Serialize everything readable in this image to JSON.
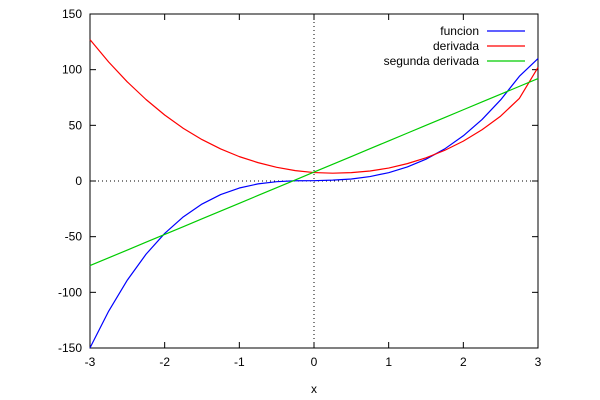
{
  "chart_data": {
    "type": "line",
    "title": "",
    "xlabel": "x",
    "ylabel": "",
    "xlim": [
      -3,
      3
    ],
    "ylim": [
      -150,
      150
    ],
    "x_ticks": [
      -3,
      -2,
      -1,
      0,
      1,
      2,
      3
    ],
    "y_ticks": [
      -150,
      -100,
      -50,
      0,
      50,
      100,
      150
    ],
    "x_tick_labels": [
      "-3",
      "-2",
      "-1",
      "0",
      "1",
      "2",
      "3"
    ],
    "y_tick_labels": [
      "-150",
      "-100",
      "-50",
      "0",
      "50",
      "100",
      "150"
    ],
    "zero_axes": "dotted",
    "grid": false,
    "legend_position": "top-right",
    "x": [
      -3.0,
      -2.75,
      -2.5,
      -2.25,
      -2.0,
      -1.75,
      -1.5,
      -1.25,
      -1.0,
      -0.75,
      -0.5,
      -0.25,
      0.0,
      0.25,
      0.5,
      0.75,
      1.0,
      1.25,
      1.5,
      1.75,
      2.0,
      2.25,
      2.5,
      2.75,
      3.0
    ],
    "series": [
      {
        "name": "funcion",
        "color": "#0000ff",
        "values": [
          -149.9,
          -116.9,
          -89.0,
          -65.8,
          -47.1,
          -32.2,
          -20.7,
          -12.2,
          -6.3,
          -2.6,
          -0.6,
          0.2,
          0.3,
          0.8,
          1.8,
          4.0,
          7.5,
          12.6,
          19.6,
          28.8,
          40.6,
          55.2,
          72.9,
          94.0,
          110.0
        ]
      },
      {
        "name": "derivada",
        "color": "#ff0000",
        "values": [
          127.0,
          106.9,
          89.0,
          73.2,
          59.3,
          47.3,
          37.2,
          28.8,
          21.9,
          16.5,
          12.3,
          9.3,
          7.6,
          7.0,
          7.5,
          9.0,
          11.6,
          15.6,
          20.8,
          27.5,
          35.8,
          46.0,
          58.3,
          74.2,
          102.0
        ]
      },
      {
        "name": "segunda derivada",
        "color": "#00cc00",
        "values": [
          -76.0,
          -69.0,
          -62.0,
          -55.0,
          -48.0,
          -41.0,
          -34.0,
          -27.0,
          -20.0,
          -13.0,
          -6.0,
          1.0,
          8.0,
          15.0,
          22.0,
          29.0,
          36.0,
          43.0,
          50.0,
          57.0,
          64.0,
          71.0,
          78.0,
          85.0,
          92.0
        ]
      }
    ]
  }
}
